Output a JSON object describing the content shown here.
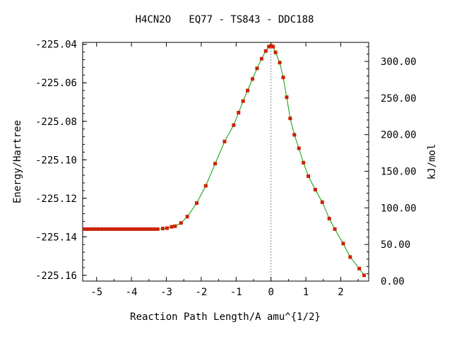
{
  "chart_data": {
    "type": "line",
    "title": "H4CN2O   EQ77 - TS843 - DDC188",
    "xlabel": "Reaction Path Length/A amu^{1/2}",
    "ylabel": "Energy/Hartree",
    "y2label": "kJ/mol",
    "xlim": [
      -5.4,
      2.8
    ],
    "ylim": [
      -225.163,
      -225.039
    ],
    "y2lim": [
      0,
      326
    ],
    "xticks": [
      -5,
      -4,
      -3,
      -2,
      -1,
      0,
      1,
      2
    ],
    "xtick_labels": [
      "-5",
      "-4",
      "-3",
      "-2",
      "-1",
      "0",
      "1",
      "2"
    ],
    "yticks": [
      -225.04,
      -225.06,
      -225.08,
      -225.1,
      -225.12,
      -225.14,
      -225.16
    ],
    "ytick_labels": [
      "-225.04",
      "-225.06",
      "-225.08",
      "-225.10",
      "-225.12",
      "-225.14",
      "-225.16"
    ],
    "y2ticks": [
      0,
      50,
      100,
      150,
      200,
      250,
      300
    ],
    "y2tick_labels": [
      "0.00",
      "50.00",
      "100.00",
      "150.00",
      "200.00",
      "250.00",
      "300.00"
    ],
    "ts_marker_x": 0.0,
    "line_color": "#00a000",
    "marker_color": "#cc2200",
    "series": [
      {
        "x": [
          -5.35,
          -5.25,
          -5.15,
          -5.05,
          -4.95,
          -4.85,
          -4.75,
          -4.65,
          -4.55,
          -4.45,
          -4.35,
          -4.25,
          -4.15,
          -4.05,
          -3.95,
          -3.85,
          -3.75,
          -3.65,
          -3.55,
          -3.45,
          -3.35,
          -3.25,
          -3.1,
          -2.98,
          -2.85,
          -2.75,
          -2.58,
          -2.4,
          -2.13,
          -1.87,
          -1.6,
          -1.33,
          -1.07,
          -0.93,
          -0.8,
          -0.67,
          -0.53,
          -0.4,
          -0.27,
          -0.15,
          -0.06,
          0.0,
          0.06,
          0.13,
          0.25,
          0.35,
          0.45,
          0.55,
          0.67,
          0.8,
          0.93,
          1.07,
          1.27,
          1.47,
          1.67,
          1.83,
          2.07,
          2.27,
          2.53,
          2.67
        ],
        "y": [
          -225.136,
          -225.136,
          -225.136,
          -225.136,
          -225.136,
          -225.136,
          -225.136,
          -225.136,
          -225.136,
          -225.136,
          -225.136,
          -225.136,
          -225.136,
          -225.136,
          -225.136,
          -225.136,
          -225.136,
          -225.136,
          -225.136,
          -225.136,
          -225.136,
          -225.136,
          -225.1357,
          -225.1355,
          -225.1348,
          -225.1345,
          -225.1328,
          -225.1295,
          -225.1225,
          -225.1135,
          -225.102,
          -225.0905,
          -225.082,
          -225.0755,
          -225.0695,
          -225.064,
          -225.058,
          -225.0525,
          -225.0475,
          -225.0435,
          -225.0412,
          -225.0408,
          -225.0412,
          -225.0442,
          -225.0495,
          -225.0572,
          -225.0675,
          -225.0785,
          -225.087,
          -225.094,
          -225.1015,
          -225.1085,
          -225.1155,
          -225.122,
          -225.1305,
          -225.136,
          -225.1435,
          -225.1505,
          -225.1565,
          -225.16
        ]
      }
    ]
  }
}
